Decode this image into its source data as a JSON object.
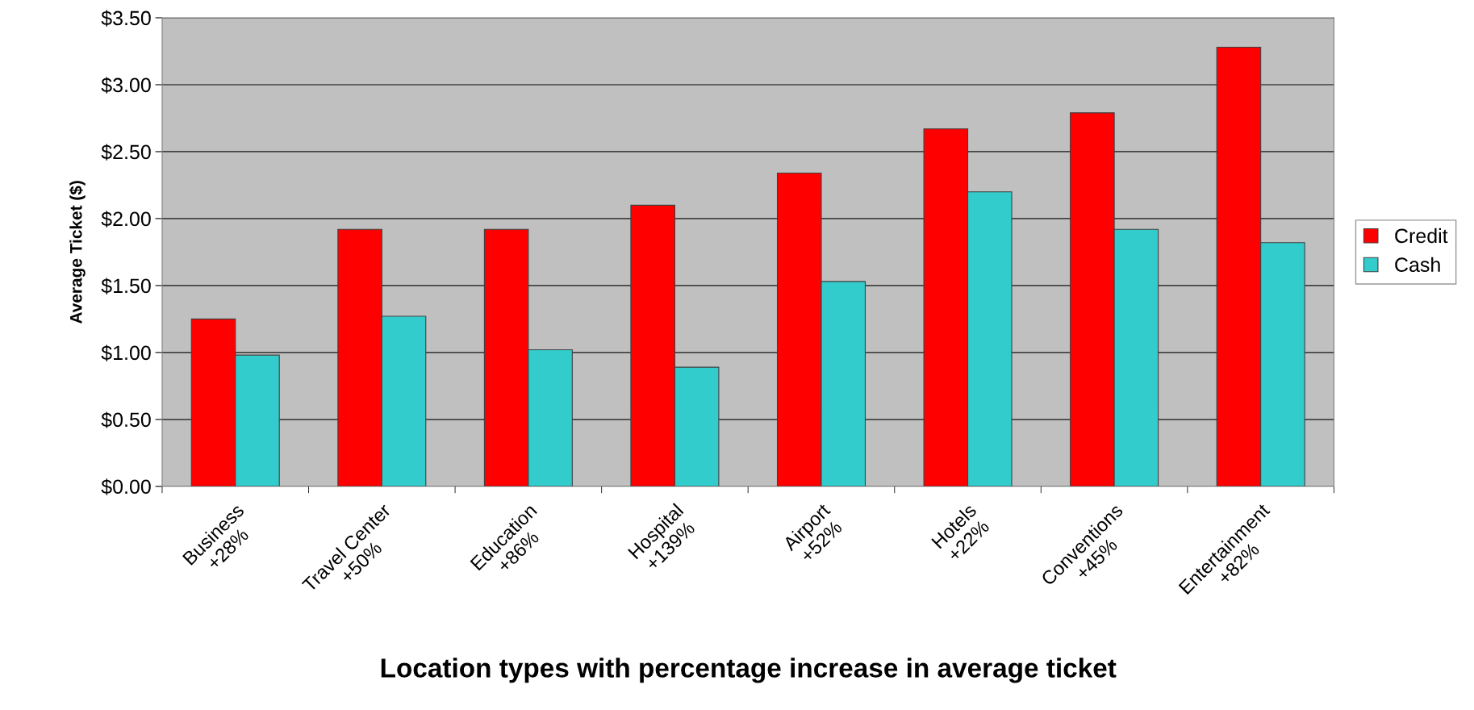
{
  "chart_data": {
    "type": "bar",
    "xlabel": "Location types with percentage increase in average ticket",
    "ylabel": "Average Ticket ($)",
    "categories": [
      "Business\n+28%",
      "Travel Center\n+50%",
      "Education\n+86%",
      "Hospital\n+139%",
      "Airport\n+52%",
      "Hotels\n+22%",
      "Conventions\n+45%",
      "Entertainment\n+82%"
    ],
    "series": [
      {
        "name": "Credit",
        "color": "#ff0000",
        "values": [
          1.25,
          1.92,
          1.92,
          2.1,
          2.34,
          2.67,
          2.79,
          3.28
        ]
      },
      {
        "name": "Cash",
        "color": "#33cccc",
        "values": [
          0.98,
          1.27,
          1.02,
          0.89,
          1.53,
          2.2,
          1.92,
          1.82
        ]
      }
    ],
    "ylim": [
      0,
      3.5
    ],
    "yticks": [
      {
        "value": 0,
        "label": "$0.00"
      },
      {
        "value": 0.5,
        "label": "$0.50"
      },
      {
        "value": 1,
        "label": "$1.00"
      },
      {
        "value": 1.5,
        "label": "$1.50"
      },
      {
        "value": 2,
        "label": "$2.00"
      },
      {
        "value": 2.5,
        "label": "$2.50"
      },
      {
        "value": 3,
        "label": "$3.00"
      },
      {
        "value": 3.5,
        "label": "$3.50"
      }
    ],
    "grid": "y",
    "legend": "right"
  }
}
